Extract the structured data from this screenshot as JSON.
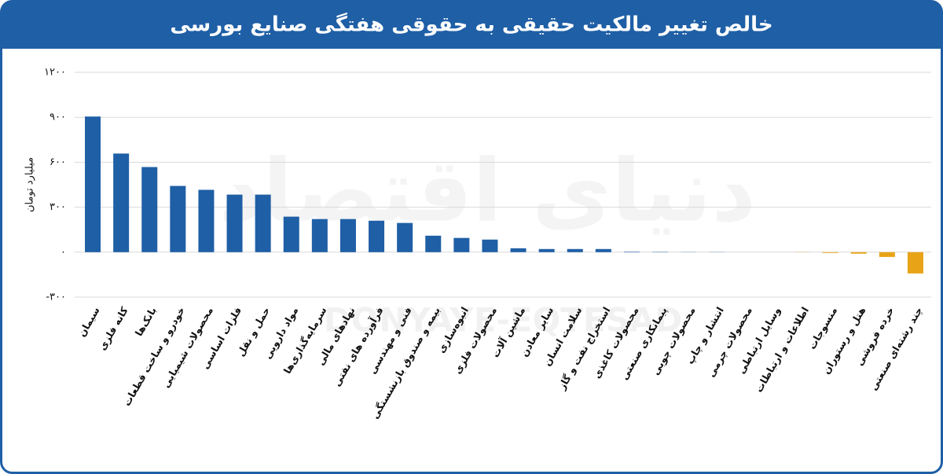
{
  "chart_data": {
    "type": "bar",
    "title": "خالص تغییر مالکیت حقیقی به حقوقی هفتگی صنایع بورسی",
    "y_label": "میلیارد تومان",
    "watermark": "DONYAYE-EQTESAD",
    "watermark_fa": "دنیای اقتصاد",
    "categories": [
      "سیمان",
      "کانه فلزی",
      "بانک‌ها",
      "خودرو و ساخت قطعات",
      "محصولات شیمیایی",
      "فلزات اساسی",
      "حمل و نقل",
      "مواد دارویی",
      "سرمایه‌گذاری‌ها",
      "نهادهای مالی",
      "فرآورده های نفتی",
      "فنی و مهندسی",
      "بیمه و صندوق بازنشستگی",
      "انبوه‌سازی",
      "محصولات فلزی",
      "ماشین آلات",
      "سایر معادن",
      "سلامت انسان",
      "استخراج نفت و گاز",
      "محصولات کاغذی",
      "پیمانکاری صنعتی",
      "محصولات چوبی",
      "انتشار و چاپ",
      "محصولات چرمی",
      "وسایل ارتباطی",
      "اطلاعات و ارتباطات",
      "منسوجات",
      "هتل و رستوران",
      "خرده فروشی",
      "چند رشته‌ای صنعتی"
    ],
    "values": [
      905,
      658,
      568,
      442,
      416,
      384,
      384,
      237,
      221,
      221,
      210,
      195,
      110,
      95,
      84,
      26,
      21,
      21,
      21,
      3,
      2,
      1,
      1,
      0,
      0,
      -1,
      -5,
      -10,
      -32,
      -142
    ],
    "color": "#1f5fa6",
    "negative_color": "#e8a317",
    "ylim": [
      -300,
      1200
    ],
    "yticks": [
      {
        "value": -300,
        "label": "-۳۰۰"
      },
      {
        "value": 0,
        "label": "۰"
      },
      {
        "value": 300,
        "label": "۳۰۰"
      },
      {
        "value": 600,
        "label": "۶۰۰"
      },
      {
        "value": 900,
        "label": "۹۰۰"
      },
      {
        "value": 1200,
        "label": "۱۲۰۰"
      }
    ],
    "grid": true
  }
}
